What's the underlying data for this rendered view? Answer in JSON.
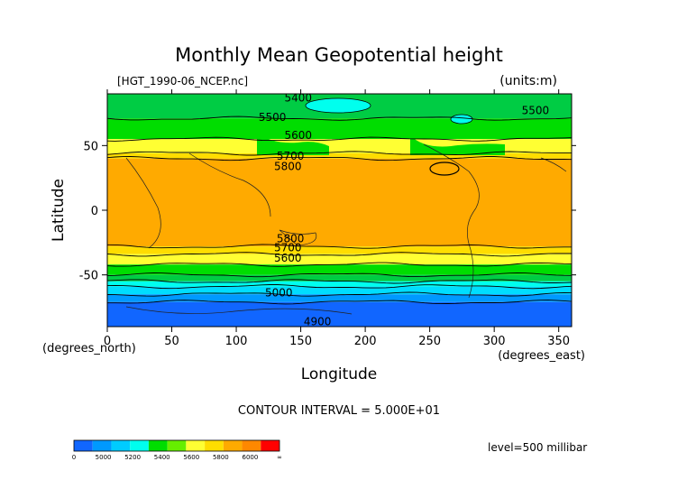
{
  "chart_data": {
    "type": "heatmap",
    "title": "Monthly Mean Geopotential height",
    "subtitle": "[HGT_1990-06_NCEP.nc]",
    "units": "(units:m)",
    "xlabel": "Longitude",
    "ylabel": "Latitude",
    "xunit": "(degrees_east)",
    "yunit": "(degrees_north)",
    "xlim": [
      0,
      360
    ],
    "ylim": [
      -90,
      90
    ],
    "x_ticks": [
      0,
      50,
      100,
      150,
      200,
      250,
      300,
      350
    ],
    "y_ticks": [
      50,
      0,
      -50
    ],
    "contour_interval": "CONTOUR INTERVAL = 5.000E+01",
    "level": "level=500 millibar",
    "bands": [
      {
        "lat_top": 90,
        "lat_bottom": 71,
        "value": 5450,
        "color": "#00cc44"
      },
      {
        "lat_top": 71,
        "lat_bottom": 55,
        "value": 5575,
        "color": "#00dd00"
      },
      {
        "lat_top": 55,
        "lat_bottom": 44,
        "value": 5700,
        "color": "#ffff33"
      },
      {
        "lat_top": 44,
        "lat_bottom": 40,
        "value": 5780,
        "color": "#ffdd00"
      },
      {
        "lat_top": 40,
        "lat_bottom": -28,
        "value": 5850,
        "color": "#ffaa00"
      },
      {
        "lat_top": -28,
        "lat_bottom": -34,
        "value": 5770,
        "color": "#ffdd00"
      },
      {
        "lat_top": -34,
        "lat_bottom": -42,
        "value": 5680,
        "color": "#ffff33"
      },
      {
        "lat_top": -42,
        "lat_bottom": -50,
        "value": 5560,
        "color": "#00dd00"
      },
      {
        "lat_top": -50,
        "lat_bottom": -55,
        "value": 5450,
        "color": "#00cc44"
      },
      {
        "lat_top": -55,
        "lat_bottom": -59,
        "value": 5380,
        "color": "#00ffee"
      },
      {
        "lat_top": -59,
        "lat_bottom": -65,
        "value": 5260,
        "color": "#00ddff"
      },
      {
        "lat_top": -65,
        "lat_bottom": -71,
        "value": 5100,
        "color": "#0099ff"
      },
      {
        "lat_top": -71,
        "lat_bottom": -90,
        "value": 4950,
        "color": "#1166ff"
      }
    ],
    "contour_labels": [
      {
        "text": "5400",
        "lon": 148,
        "lat": 87
      },
      {
        "text": "5500",
        "lon": 128,
        "lat": 72
      },
      {
        "text": "5500",
        "lon": 332,
        "lat": 77
      },
      {
        "text": "5600",
        "lon": 148,
        "lat": 58
      },
      {
        "text": "5700",
        "lon": 142,
        "lat": 42
      },
      {
        "text": "5800",
        "lon": 140,
        "lat": 34
      },
      {
        "text": "5800",
        "lon": 142,
        "lat": -22
      },
      {
        "text": "5700",
        "lon": 140,
        "lat": -29
      },
      {
        "text": "5600",
        "lon": 140,
        "lat": -37
      },
      {
        "text": "5000",
        "lon": 133,
        "lat": -64
      },
      {
        "text": "4900",
        "lon": 163,
        "lat": -86
      }
    ],
    "colorbar": {
      "colors": [
        "#1166ff",
        "#0099ff",
        "#00ccff",
        "#00ffee",
        "#00dd00",
        "#66ee00",
        "#ffff33",
        "#ffdd00",
        "#ffaa00",
        "#ff8800",
        "#ff0000"
      ],
      "tick_labels": [
        "0",
        "5000",
        "5200",
        "5400",
        "5600",
        "5800",
        "6000",
        "∞"
      ]
    }
  }
}
